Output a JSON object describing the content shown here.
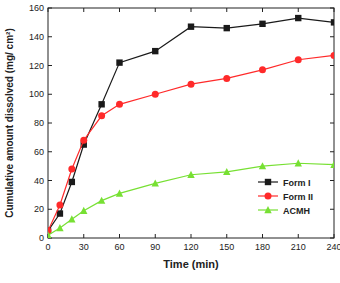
{
  "chart_data": {
    "type": "line",
    "x_label": "Time (min)",
    "y_label": "Cumulative amount dissolved (mg/ cm²)",
    "x": [
      0,
      10,
      20,
      30,
      45,
      60,
      90,
      120,
      150,
      180,
      210,
      240
    ],
    "series": [
      {
        "name": "Form I",
        "color": "#1a1a1a",
        "marker": "square",
        "values": [
          5,
          17,
          39,
          65,
          93,
          122,
          130,
          147,
          146,
          149,
          153,
          150
        ]
      },
      {
        "name": "Form II",
        "color": "#ff2a2a",
        "marker": "circle",
        "values": [
          5,
          23,
          48,
          68,
          85,
          93,
          100,
          107,
          111,
          117,
          124,
          127
        ]
      },
      {
        "name": "ACMH",
        "color": "#77e033",
        "marker": "triangle",
        "values": [
          2,
          7,
          13,
          19,
          26,
          31,
          38,
          44,
          46,
          50,
          52,
          51
        ]
      }
    ],
    "xlim": [
      0,
      240
    ],
    "xticks": [
      0,
      30,
      60,
      90,
      120,
      150,
      180,
      210,
      240
    ],
    "ylim": [
      0,
      160
    ],
    "yticks": [
      0,
      20,
      40,
      60,
      80,
      100,
      120,
      140,
      160
    ],
    "grid": false,
    "legend": "right"
  }
}
